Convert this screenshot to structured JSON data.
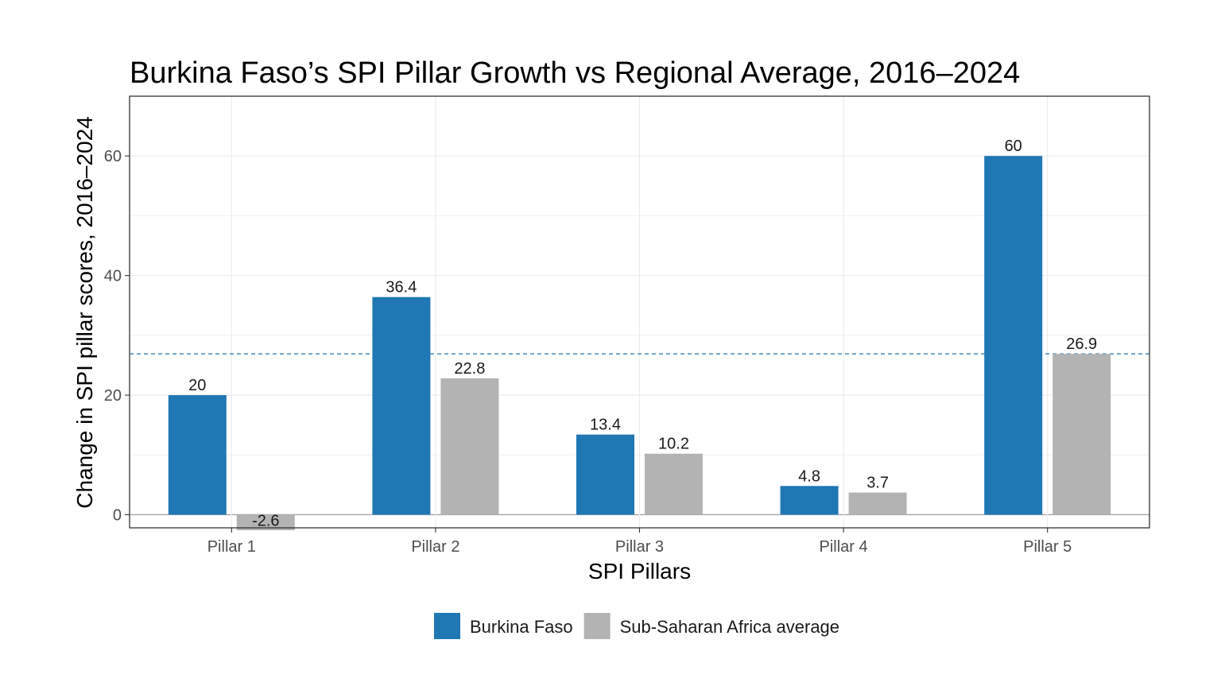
{
  "chart_data": {
    "type": "bar",
    "title": "Burkina Faso’s SPI Pillar Growth vs Regional Average, 2016–2024",
    "xlabel": "SPI Pillars",
    "ylabel": "Change in SPI pillar scores, 2016–2024",
    "categories": [
      "Pillar 1",
      "Pillar 2",
      "Pillar 3",
      "Pillar 4",
      "Pillar 5"
    ],
    "series": [
      {
        "name": "Burkina Faso",
        "color": "#1f77b4",
        "values": [
          20,
          36.4,
          13.4,
          4.8,
          60
        ],
        "labels": [
          "20",
          "36.4",
          "13.4",
          "4.8",
          "60"
        ]
      },
      {
        "name": "Sub-Saharan Africa average",
        "color": "#b3b3b3",
        "values": [
          -2.6,
          22.8,
          10.2,
          3.7,
          26.9
        ],
        "labels": [
          "-2.6",
          "22.8",
          "10.2",
          "3.7",
          "26.9"
        ]
      }
    ],
    "ylim": [
      -2.2,
      70
    ],
    "yticks": [
      0,
      20,
      40,
      60
    ],
    "ytick_labels": [
      "0",
      "20",
      "40",
      "60"
    ],
    "minor_gridlines": [
      10,
      30,
      50
    ],
    "reference_line": {
      "value": 26.9,
      "style": "dashed",
      "color": "#1f77b4"
    },
    "grid": true,
    "legend_position": "bottom"
  }
}
